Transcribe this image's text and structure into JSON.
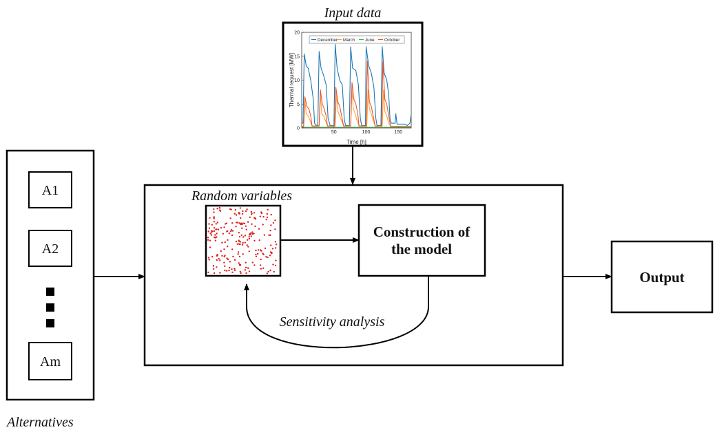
{
  "labels": {
    "input_data": "Input data",
    "random_variables": "Random variables",
    "construction_line1": "Construction of",
    "construction_line2": "the model",
    "sensitivity": "Sensitivity analysis",
    "output": "Output",
    "alternatives": "Alternatives"
  },
  "alternatives": [
    "A1",
    "A2",
    "Am"
  ],
  "chart_data": {
    "type": "line",
    "xlabel": "Time [h]",
    "ylabel": "Thermal request [MW]",
    "xlim": [
      0,
      170
    ],
    "ylim": [
      0,
      20
    ],
    "x_ticks": [
      50,
      100,
      150
    ],
    "y_ticks": [
      0,
      5,
      10,
      15,
      20
    ],
    "legend_position": "top",
    "series": [
      {
        "name": "December",
        "color": "#1f77b4",
        "points": [
          [
            0,
            1
          ],
          [
            2,
            1
          ],
          [
            4,
            15.5
          ],
          [
            7,
            13
          ],
          [
            10,
            12.5
          ],
          [
            14,
            10
          ],
          [
            18,
            6
          ],
          [
            20,
            1
          ],
          [
            22,
            0.6
          ],
          [
            25,
            0.5
          ],
          [
            27,
            16
          ],
          [
            30,
            12.5
          ],
          [
            34,
            11
          ],
          [
            38,
            9
          ],
          [
            41,
            2
          ],
          [
            44,
            0.5
          ],
          [
            50,
            0.5
          ],
          [
            52,
            17.5
          ],
          [
            55,
            12.5
          ],
          [
            59,
            10
          ],
          [
            63,
            9
          ],
          [
            66,
            2
          ],
          [
            68,
            0.5
          ],
          [
            74,
            0.5
          ],
          [
            76,
            17
          ],
          [
            79,
            12.5
          ],
          [
            84,
            12
          ],
          [
            88,
            9
          ],
          [
            91,
            2
          ],
          [
            93,
            0.5
          ],
          [
            99,
            0.5
          ],
          [
            100,
            17
          ],
          [
            104,
            13
          ],
          [
            108,
            11.5
          ],
          [
            112,
            8.5
          ],
          [
            115,
            2
          ],
          [
            117,
            0.5
          ],
          [
            123,
            0.5
          ],
          [
            125,
            17
          ],
          [
            128,
            11.5
          ],
          [
            132,
            10
          ],
          [
            135,
            7
          ],
          [
            137,
            2
          ],
          [
            139,
            1
          ],
          [
            145,
            1
          ],
          [
            146,
            3
          ],
          [
            148,
            0.8
          ],
          [
            160,
            0.8
          ],
          [
            164,
            0.5
          ],
          [
            168,
            1
          ],
          [
            170,
            2.8
          ]
        ]
      },
      {
        "name": "March",
        "color": "#ff9f3a",
        "points": [
          [
            0,
            0.3
          ],
          [
            3,
            0.4
          ],
          [
            5,
            6
          ],
          [
            7,
            3
          ],
          [
            10,
            2.5
          ],
          [
            13,
            1.5
          ],
          [
            16,
            0.4
          ],
          [
            27,
            0.4
          ],
          [
            29,
            7
          ],
          [
            31,
            3
          ],
          [
            34,
            2.5
          ],
          [
            37,
            1.5
          ],
          [
            40,
            0.4
          ],
          [
            52,
            0.4
          ],
          [
            54,
            7.5
          ],
          [
            56,
            3.5
          ],
          [
            59,
            2.5
          ],
          [
            62,
            1.5
          ],
          [
            65,
            0.4
          ],
          [
            76,
            0.4
          ],
          [
            78,
            8
          ],
          [
            80,
            4
          ],
          [
            83,
            3
          ],
          [
            86,
            1.5
          ],
          [
            89,
            0.4
          ],
          [
            101,
            0.4
          ],
          [
            103,
            8
          ],
          [
            105,
            4
          ],
          [
            108,
            3
          ],
          [
            111,
            1.5
          ],
          [
            114,
            0.4
          ],
          [
            125,
            0.4
          ],
          [
            127,
            8
          ],
          [
            129,
            3.5
          ],
          [
            132,
            2.5
          ],
          [
            135,
            1
          ],
          [
            138,
            0.3
          ],
          [
            170,
            0.3
          ]
        ]
      },
      {
        "name": "June",
        "color": "#3cb44b",
        "points": [
          [
            0,
            0.15
          ],
          [
            170,
            0.15
          ]
        ]
      },
      {
        "name": "October",
        "color": "#e8572a",
        "points": [
          [
            0,
            0.2
          ],
          [
            3,
            0.3
          ],
          [
            5,
            6.5
          ],
          [
            8,
            4.5
          ],
          [
            11,
            4
          ],
          [
            14,
            2.5
          ],
          [
            16,
            0.4
          ],
          [
            27,
            0.4
          ],
          [
            29,
            8
          ],
          [
            32,
            5
          ],
          [
            35,
            4
          ],
          [
            38,
            2.5
          ],
          [
            40,
            0.4
          ],
          [
            51,
            0.4
          ],
          [
            53,
            8.5
          ],
          [
            56,
            5.5
          ],
          [
            59,
            4.5
          ],
          [
            62,
            2.5
          ],
          [
            65,
            0.4
          ],
          [
            76,
            0.4
          ],
          [
            78,
            9.5
          ],
          [
            81,
            6
          ],
          [
            84,
            5
          ],
          [
            87,
            3
          ],
          [
            89,
            0.4
          ],
          [
            100,
            0.4
          ],
          [
            102,
            14
          ],
          [
            105,
            5.5
          ],
          [
            108,
            4.5
          ],
          [
            111,
            2.5
          ],
          [
            114,
            0.4
          ],
          [
            124,
            0.4
          ],
          [
            126,
            14
          ],
          [
            129,
            6
          ],
          [
            132,
            5
          ],
          [
            135,
            2.5
          ],
          [
            138,
            0.3
          ],
          [
            170,
            0.3
          ]
        ]
      }
    ]
  },
  "colors": {
    "line": "#000000",
    "dots": "#e02020"
  }
}
